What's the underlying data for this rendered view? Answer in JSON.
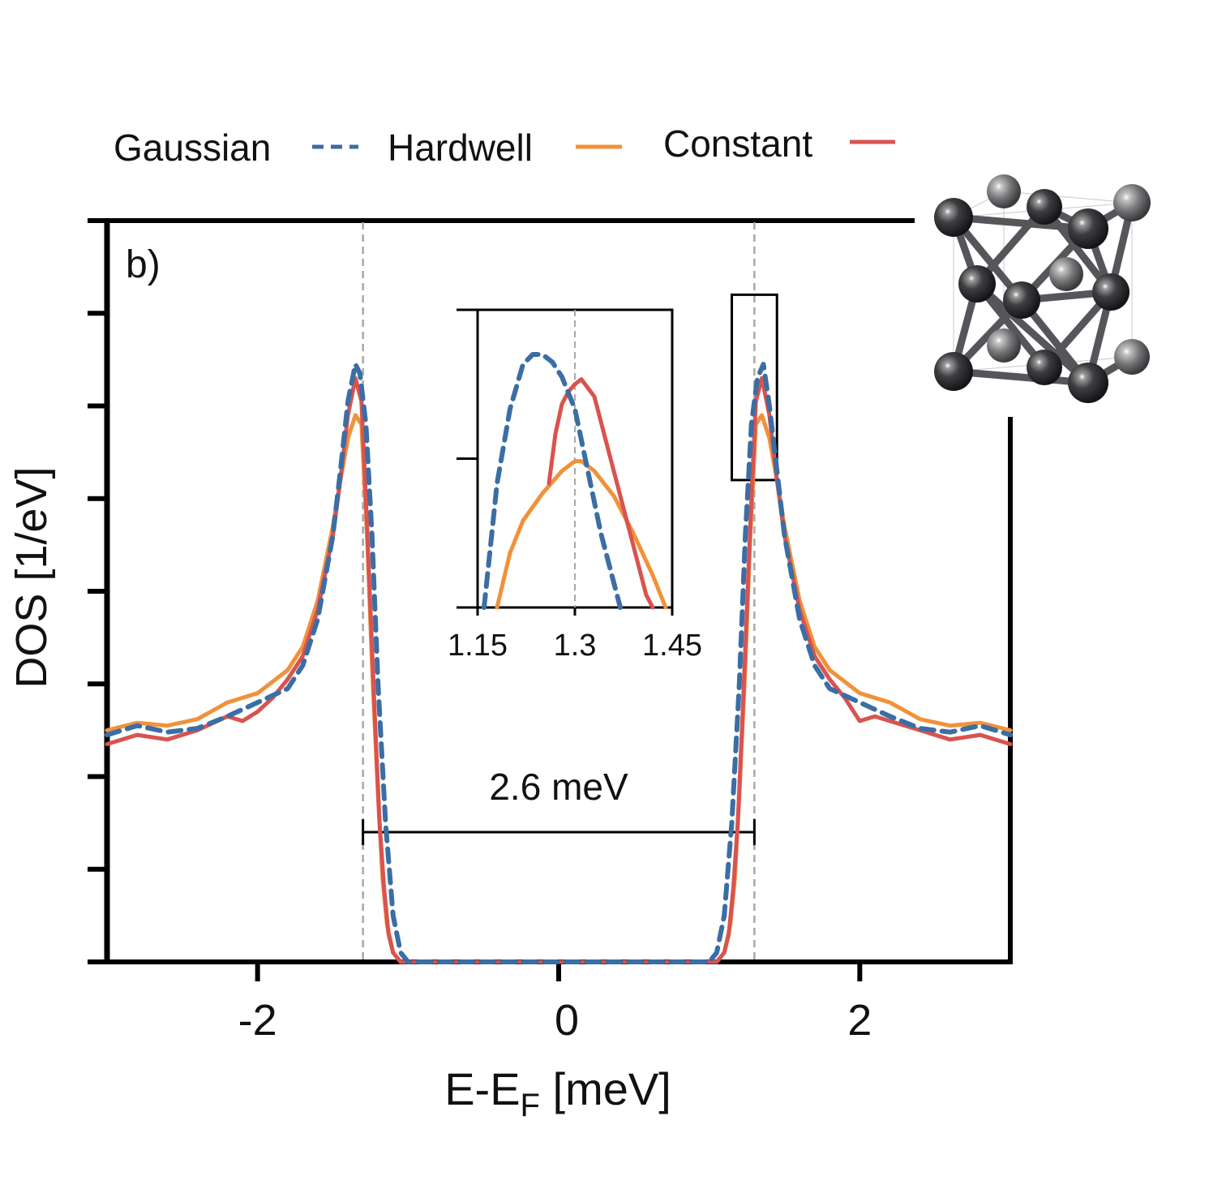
{
  "chart_data": {
    "type": "line",
    "panel_label": "b)",
    "xlabel_main": "E-E",
    "xlabel_sub": "F",
    "xlabel_unit": " [meV]",
    "ylabel": "DOS [1/eV]",
    "xlim": [
      -3.0,
      3.0
    ],
    "ylim": [
      0,
      8
    ],
    "xticks": [
      -2,
      0,
      2
    ],
    "xtick_labels": [
      "-2",
      "0",
      "2"
    ],
    "yticks": [
      0,
      1,
      2,
      3,
      4,
      5,
      6,
      7,
      8
    ],
    "legend": {
      "position": "top",
      "entries": [
        "Gaussian",
        "Hardwell",
        "Constant"
      ]
    },
    "colors": {
      "Gaussian": "#3a6ea5",
      "Hardwell": "#f0923a",
      "Constant": "#d9534f"
    },
    "vlines": [
      -1.3,
      1.3
    ],
    "gap_annotation": {
      "text": "2.6 meV",
      "from": -1.3,
      "to": 1.3,
      "y": 1.4
    },
    "zoom_box": {
      "x": [
        1.15,
        1.45
      ],
      "y": [
        5.2,
        7.2
      ]
    },
    "series": [
      {
        "name": "Gaussian",
        "style": "dashed",
        "x": [
          -3.0,
          -2.8,
          -2.6,
          -2.4,
          -2.2,
          -2.0,
          -1.8,
          -1.7,
          -1.6,
          -1.5,
          -1.45,
          -1.4,
          -1.35,
          -1.32,
          -1.28,
          -1.24,
          -1.2,
          -1.15,
          -1.1,
          -1.05,
          -1.0,
          0,
          1.0,
          1.05,
          1.1,
          1.15,
          1.2,
          1.24,
          1.28,
          1.32,
          1.36,
          1.4,
          1.45,
          1.5,
          1.6,
          1.7,
          1.8,
          2.0,
          2.2,
          2.4,
          2.6,
          2.8,
          3.0
        ],
        "y": [
          2.45,
          2.55,
          2.48,
          2.52,
          2.65,
          2.8,
          2.95,
          3.2,
          3.7,
          4.6,
          5.3,
          6.05,
          6.45,
          6.35,
          5.8,
          4.6,
          3.0,
          1.5,
          0.5,
          0.1,
          0.0,
          0.0,
          0.0,
          0.1,
          0.5,
          1.5,
          3.0,
          4.6,
          5.8,
          6.3,
          6.45,
          6.0,
          5.3,
          4.6,
          3.7,
          3.2,
          2.95,
          2.8,
          2.65,
          2.52,
          2.48,
          2.55,
          2.45
        ]
      },
      {
        "name": "Hardwell",
        "style": "solid",
        "x": [
          -3.0,
          -2.8,
          -2.6,
          -2.4,
          -2.2,
          -2.0,
          -1.8,
          -1.7,
          -1.6,
          -1.5,
          -1.45,
          -1.4,
          -1.35,
          -1.31,
          -1.27,
          -1.24,
          -1.2,
          -1.17,
          -1.14,
          -1.1,
          -1.05,
          0,
          1.05,
          1.1,
          1.14,
          1.17,
          1.2,
          1.24,
          1.27,
          1.31,
          1.35,
          1.4,
          1.45,
          1.5,
          1.6,
          1.7,
          1.8,
          2.0,
          2.2,
          2.4,
          2.6,
          2.8,
          3.0
        ],
        "y": [
          2.5,
          2.58,
          2.55,
          2.62,
          2.8,
          2.9,
          3.15,
          3.4,
          3.9,
          4.7,
          5.2,
          5.65,
          5.9,
          5.8,
          4.5,
          3.2,
          1.8,
          0.9,
          0.4,
          0.1,
          0.0,
          0.0,
          0.0,
          0.1,
          0.4,
          0.9,
          1.8,
          3.2,
          4.5,
          5.8,
          5.9,
          5.65,
          5.2,
          4.7,
          3.9,
          3.4,
          3.15,
          2.9,
          2.8,
          2.62,
          2.55,
          2.58,
          2.5
        ]
      },
      {
        "name": "Constant",
        "style": "solid",
        "x": [
          -3.0,
          -2.8,
          -2.6,
          -2.4,
          -2.2,
          -2.1,
          -2.0,
          -1.9,
          -1.8,
          -1.7,
          -1.6,
          -1.5,
          -1.45,
          -1.4,
          -1.35,
          -1.31,
          -1.28,
          -1.25,
          -1.22,
          -1.19,
          -1.16,
          -1.13,
          -1.1,
          -1.05,
          0,
          1.05,
          1.1,
          1.13,
          1.16,
          1.19,
          1.22,
          1.25,
          1.28,
          1.31,
          1.35,
          1.4,
          1.45,
          1.5,
          1.6,
          1.7,
          1.8,
          1.9,
          2.0,
          2.1,
          2.2,
          2.4,
          2.6,
          2.8,
          3.0
        ],
        "y": [
          2.35,
          2.45,
          2.4,
          2.5,
          2.65,
          2.6,
          2.7,
          2.85,
          3.05,
          3.3,
          3.8,
          4.6,
          5.2,
          5.9,
          6.3,
          6.05,
          5.0,
          3.8,
          2.6,
          1.5,
          0.8,
          0.3,
          0.1,
          0.0,
          0.0,
          0.0,
          0.1,
          0.3,
          0.8,
          1.5,
          2.6,
          3.8,
          5.0,
          6.05,
          6.3,
          5.9,
          5.2,
          4.6,
          3.8,
          3.3,
          3.05,
          2.85,
          2.6,
          2.65,
          2.6,
          2.5,
          2.4,
          2.45,
          2.35
        ]
      }
    ],
    "inset": {
      "xlim": [
        1.15,
        1.45
      ],
      "ylim": [
        5.4,
        6.6
      ],
      "xticks": [
        1.15,
        1.3,
        1.45
      ],
      "xtick_labels": [
        "1.15",
        "1.3",
        "1.45"
      ],
      "yticks": [
        5.4,
        6.0,
        6.6
      ],
      "vline": 1.3,
      "series": [
        {
          "name": "Gaussian",
          "style": "dashed",
          "x": [
            1.16,
            1.18,
            1.2,
            1.22,
            1.235,
            1.25,
            1.265,
            1.28,
            1.3,
            1.32,
            1.34,
            1.37
          ],
          "y": [
            5.4,
            5.9,
            6.2,
            6.38,
            6.42,
            6.42,
            6.39,
            6.33,
            6.2,
            5.95,
            5.7,
            5.4
          ]
        },
        {
          "name": "Hardwell",
          "style": "solid",
          "x": [
            1.18,
            1.2,
            1.22,
            1.25,
            1.28,
            1.3,
            1.31,
            1.33,
            1.36,
            1.39,
            1.42,
            1.44
          ],
          "y": [
            5.4,
            5.62,
            5.75,
            5.86,
            5.95,
            5.99,
            5.99,
            5.95,
            5.85,
            5.7,
            5.53,
            5.4
          ]
        },
        {
          "name": "Constant",
          "style": "solid",
          "x": [
            1.26,
            1.27,
            1.28,
            1.29,
            1.3,
            1.31,
            1.33,
            1.35,
            1.37,
            1.39,
            1.41,
            1.42
          ],
          "y": [
            5.9,
            6.1,
            6.22,
            6.27,
            6.3,
            6.32,
            6.25,
            6.05,
            5.85,
            5.65,
            5.45,
            5.4
          ]
        }
      ]
    }
  },
  "structure_image": {
    "description_icon": "crystal-structure-icon"
  }
}
